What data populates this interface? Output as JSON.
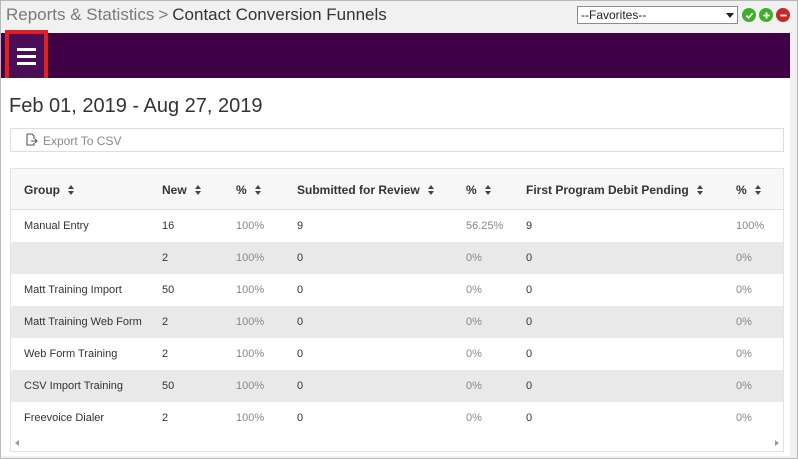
{
  "breadcrumb": {
    "parent": "Reports & Statistics",
    "separator": ">",
    "current": "Contact Conversion Funnels"
  },
  "favorites": {
    "selected": "--Favorites--"
  },
  "icons": {
    "confirm": "check-circle-icon",
    "add": "plus-circle-icon",
    "remove": "minus-circle-icon",
    "menu": "hamburger-menu-icon",
    "export": "export-file-icon"
  },
  "colors": {
    "header_purple": "#3f0046",
    "highlight_red": "#e02020",
    "ok_green": "#3fae2a",
    "remove_red": "#c62828"
  },
  "date_range": "Feb 01, 2019 - Aug 27, 2019",
  "toolbar": {
    "export_label": "Export To CSV"
  },
  "table": {
    "headers": {
      "group": "Group",
      "new": "New",
      "pct1": "%",
      "submitted": "Submitted for Review",
      "pct2": "%",
      "debit": "First Program Debit Pending",
      "pct3": "%"
    },
    "rows": [
      {
        "group": "Manual Entry",
        "new": "16",
        "pct1": "100%",
        "submitted": "9",
        "pct2": "56.25%",
        "debit": "9",
        "pct3": "100%"
      },
      {
        "group": "",
        "new": "2",
        "pct1": "100%",
        "submitted": "0",
        "pct2": "0%",
        "debit": "0",
        "pct3": "0%"
      },
      {
        "group": "Matt Training Import",
        "new": "50",
        "pct1": "100%",
        "submitted": "0",
        "pct2": "0%",
        "debit": "0",
        "pct3": "0%"
      },
      {
        "group": "Matt Training Web Form",
        "new": "2",
        "pct1": "100%",
        "submitted": "0",
        "pct2": "0%",
        "debit": "0",
        "pct3": "0%"
      },
      {
        "group": "Web Form Training",
        "new": "2",
        "pct1": "100%",
        "submitted": "0",
        "pct2": "0%",
        "debit": "0",
        "pct3": "0%"
      },
      {
        "group": "CSV Import Training",
        "new": "50",
        "pct1": "100%",
        "submitted": "0",
        "pct2": "0%",
        "debit": "0",
        "pct3": "0%"
      },
      {
        "group": "Freevoice Dialer",
        "new": "2",
        "pct1": "100%",
        "submitted": "0",
        "pct2": "0%",
        "debit": "0",
        "pct3": "0%"
      }
    ]
  }
}
